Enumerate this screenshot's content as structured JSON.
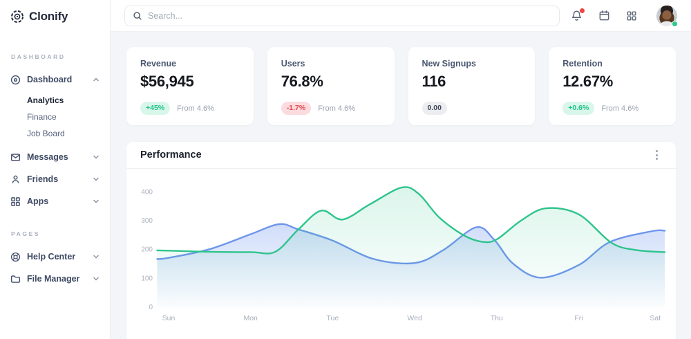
{
  "sidebar": {
    "logo_text": "Clonify",
    "sections": [
      {
        "label": "DASHBOARD",
        "items": [
          {
            "label": "Dashboard",
            "icon": "dashboard-disc-icon",
            "expanded": true,
            "children": [
              {
                "label": "Analytics",
                "active": true
              },
              {
                "label": "Finance",
                "active": false
              },
              {
                "label": "Job Board",
                "active": false
              }
            ]
          },
          {
            "label": "Messages",
            "icon": "mail-envelope-icon"
          },
          {
            "label": "Friends",
            "icon": "person-icon"
          },
          {
            "label": "Apps",
            "icon": "grid-squares-icon"
          }
        ]
      },
      {
        "label": "PAGES",
        "items": [
          {
            "label": "Help Center",
            "icon": "life-buoy-icon"
          },
          {
            "label": "File Manager",
            "icon": "folder-icon"
          }
        ]
      }
    ]
  },
  "topbar": {
    "search_placeholder": "Search...",
    "icons": [
      "bell",
      "calendar",
      "apps-grid"
    ],
    "bell_has_notification": true,
    "notification_color": "#ef4444",
    "avatar_status": "online",
    "avatar_status_color": "#2bcb8e"
  },
  "stats": [
    {
      "label": "Revenue",
      "value": "$56,945",
      "badge": "+45%",
      "badge_type": "positive",
      "note": "From 4.6%"
    },
    {
      "label": "Users",
      "value": "76.8%",
      "badge": "-1.7%",
      "badge_type": "negative",
      "note": "From 4.6%"
    },
    {
      "label": "New Signups",
      "value": "116",
      "badge": "0.00",
      "badge_type": "neutral",
      "note": ""
    },
    {
      "label": "Retention",
      "value": "12.67%",
      "badge": "+0.6%",
      "badge_type": "positive",
      "note": "From 4.6%"
    }
  ],
  "chart_data": {
    "type": "area",
    "title": "Performance",
    "x_labels": [
      "Sun",
      "Mon",
      "Tue",
      "Wed",
      "Thu",
      "Fri",
      "Sat"
    ],
    "y_ticks": [
      0,
      100,
      200,
      300,
      400
    ],
    "ylim": [
      0,
      450
    ],
    "grid": false,
    "legend": "none",
    "approx_values_at_days": {
      "green": [
        195,
        190,
        318,
        395,
        234,
        321,
        190
      ],
      "blue": [
        170,
        252,
        230,
        152,
        222,
        145,
        264
      ]
    },
    "series": [
      {
        "name": "blue-series",
        "color": "#6e95ec",
        "fill_top": "rgba(110,149,236,0.32)",
        "fill_bottom": "rgba(110,149,236,0.02)",
        "points": [
          [
            -0.14,
            166
          ],
          [
            0,
            170
          ],
          [
            0.5,
            200
          ],
          [
            1.0,
            252
          ],
          [
            1.35,
            287
          ],
          [
            1.58,
            269
          ],
          [
            2.0,
            230
          ],
          [
            2.5,
            166
          ],
          [
            3.0,
            152
          ],
          [
            3.35,
            197
          ],
          [
            3.75,
            276
          ],
          [
            3.97,
            233
          ],
          [
            4.2,
            150
          ],
          [
            4.54,
            101
          ],
          [
            5.0,
            145
          ],
          [
            5.38,
            225
          ],
          [
            5.9,
            263
          ],
          [
            6.05,
            264
          ]
        ]
      },
      {
        "name": "green-series",
        "color": "#2ec48c",
        "fill_top": "rgba(46,196,140,0.17)",
        "fill_bottom": "rgba(46,196,140,0.01)",
        "points": [
          [
            -0.14,
            196
          ],
          [
            0,
            195
          ],
          [
            0.5,
            191
          ],
          [
            1.0,
            190
          ],
          [
            1.3,
            191
          ],
          [
            1.58,
            268
          ],
          [
            1.86,
            334
          ],
          [
            2.12,
            303
          ],
          [
            2.45,
            355
          ],
          [
            2.84,
            414
          ],
          [
            3.05,
            392
          ],
          [
            3.3,
            310
          ],
          [
            3.6,
            248
          ],
          [
            3.82,
            226
          ],
          [
            4.0,
            234
          ],
          [
            4.3,
            300
          ],
          [
            4.6,
            342
          ],
          [
            5.0,
            321
          ],
          [
            5.4,
            222
          ],
          [
            5.7,
            197
          ],
          [
            6.05,
            190
          ]
        ]
      }
    ]
  }
}
